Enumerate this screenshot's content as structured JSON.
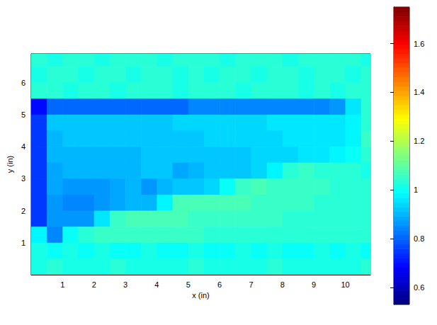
{
  "chart_data": {
    "type": "heatmap",
    "xlabel": "x (in)",
    "ylabel": "y (in)",
    "x": [
      0.25,
      0.75,
      1.25,
      1.75,
      2.25,
      2.75,
      3.25,
      3.75,
      4.25,
      4.75,
      5.25,
      5.75,
      6.25,
      6.75,
      7.25,
      7.75,
      8.25,
      8.75,
      9.25,
      9.75,
      10.25,
      10.75
    ],
    "y": [
      6.75,
      6.25,
      5.75,
      5.25,
      4.75,
      4.25,
      3.75,
      3.25,
      2.75,
      2.25,
      1.75,
      1.25,
      0.75,
      0.25
    ],
    "values": [
      [
        1.03,
        1.02,
        1.04,
        1.03,
        1.02,
        1.03,
        1.04,
        1.03,
        1.02,
        1.03,
        1.04,
        1.03,
        1.02,
        1.03,
        1.04,
        1.03,
        1.02,
        1.03,
        1.04,
        1.03,
        1.03,
        1.02
      ],
      [
        1.02,
        1.04,
        1.03,
        1.02,
        1.03,
        1.04,
        1.02,
        1.03,
        1.04,
        1.02,
        1.03,
        1.02,
        1.04,
        1.03,
        1.02,
        1.04,
        1.03,
        1.02,
        1.03,
        1.04,
        1.02,
        1.03
      ],
      [
        1.03,
        1.03,
        1.02,
        1.04,
        1.03,
        1.02,
        1.03,
        1.03,
        1.04,
        1.02,
        1.03,
        1.04,
        1.03,
        1.02,
        1.03,
        1.03,
        1.04,
        1.02,
        1.03,
        1.02,
        1.04,
        1.03
      ],
      [
        0.7,
        0.8,
        0.8,
        0.8,
        0.8,
        0.8,
        0.8,
        0.8,
        0.8,
        0.8,
        0.85,
        0.85,
        0.85,
        0.85,
        0.85,
        0.85,
        0.85,
        0.85,
        0.85,
        0.86,
        0.95,
        1.03
      ],
      [
        0.75,
        0.92,
        0.93,
        0.93,
        0.93,
        0.93,
        0.93,
        0.93,
        0.93,
        0.94,
        0.94,
        0.94,
        0.94,
        0.94,
        0.94,
        0.95,
        0.95,
        0.95,
        0.95,
        0.95,
        0.97,
        1.03
      ],
      [
        0.75,
        0.91,
        0.92,
        0.92,
        0.92,
        0.92,
        0.92,
        0.93,
        0.93,
        0.93,
        0.93,
        0.94,
        0.94,
        0.94,
        0.94,
        0.94,
        0.95,
        0.95,
        0.95,
        0.95,
        0.97,
        1.05
      ],
      [
        0.75,
        0.9,
        0.91,
        0.91,
        0.91,
        0.91,
        0.91,
        0.92,
        0.92,
        0.93,
        0.92,
        0.93,
        0.93,
        0.93,
        0.94,
        0.94,
        0.94,
        0.95,
        0.95,
        0.98,
        1.0,
        1.03
      ],
      [
        0.75,
        0.89,
        0.9,
        0.9,
        0.9,
        0.91,
        0.91,
        0.92,
        0.92,
        0.88,
        0.91,
        0.93,
        0.93,
        0.93,
        0.94,
        0.97,
        1.04,
        1.05,
        1.04,
        1.03,
        1.03,
        1.02
      ],
      [
        0.75,
        0.88,
        0.87,
        0.86,
        0.87,
        0.89,
        0.9,
        0.87,
        0.91,
        0.92,
        0.93,
        0.94,
        1.0,
        1.06,
        1.07,
        1.06,
        1.06,
        1.05,
        1.05,
        1.04,
        1.03,
        1.03
      ],
      [
        0.75,
        0.87,
        0.85,
        0.85,
        0.86,
        0.88,
        0.9,
        0.91,
        0.98,
        1.07,
        1.08,
        1.08,
        1.07,
        1.07,
        1.06,
        1.06,
        1.05,
        1.05,
        1.04,
        1.04,
        1.03,
        1.03
      ],
      [
        0.75,
        0.87,
        0.86,
        0.87,
        0.95,
        1.06,
        1.07,
        1.07,
        1.07,
        1.07,
        1.06,
        1.06,
        1.06,
        1.05,
        1.05,
        1.05,
        1.04,
        1.04,
        1.04,
        1.03,
        1.03,
        1.03
      ],
      [
        0.98,
        0.85,
        1.0,
        1.04,
        1.05,
        1.05,
        1.05,
        1.05,
        1.05,
        1.05,
        1.05,
        1.04,
        1.04,
        1.04,
        1.04,
        1.04,
        1.03,
        1.03,
        1.03,
        1.03,
        1.03,
        1.03
      ],
      [
        1.01,
        1.0,
        1.01,
        1.0,
        1.01,
        1.0,
        1.0,
        1.01,
        1.0,
        1.0,
        1.01,
        1.0,
        1.0,
        1.01,
        1.0,
        1.01,
        1.0,
        1.0,
        1.01,
        1.0,
        1.01,
        1.0
      ],
      [
        1.02,
        1.03,
        1.02,
        1.01,
        1.02,
        1.03,
        1.02,
        1.02,
        1.01,
        1.02,
        1.03,
        1.02,
        1.02,
        1.01,
        1.02,
        1.03,
        1.02,
        1.02,
        1.01,
        1.02,
        1.02,
        1.03
      ]
    ],
    "xlim": [
      0,
      10.8
    ],
    "ylim": [
      0,
      6.9
    ],
    "xticks": [
      1,
      2,
      3,
      4,
      5,
      6,
      7,
      8,
      9,
      10
    ],
    "yticks": [
      1,
      2,
      3,
      4,
      5,
      6
    ],
    "colorbar_range": [
      0.53,
      1.75
    ],
    "colorbar_ticks": [
      0.6,
      0.8,
      1,
      1.2,
      1.4,
      1.6
    ]
  }
}
